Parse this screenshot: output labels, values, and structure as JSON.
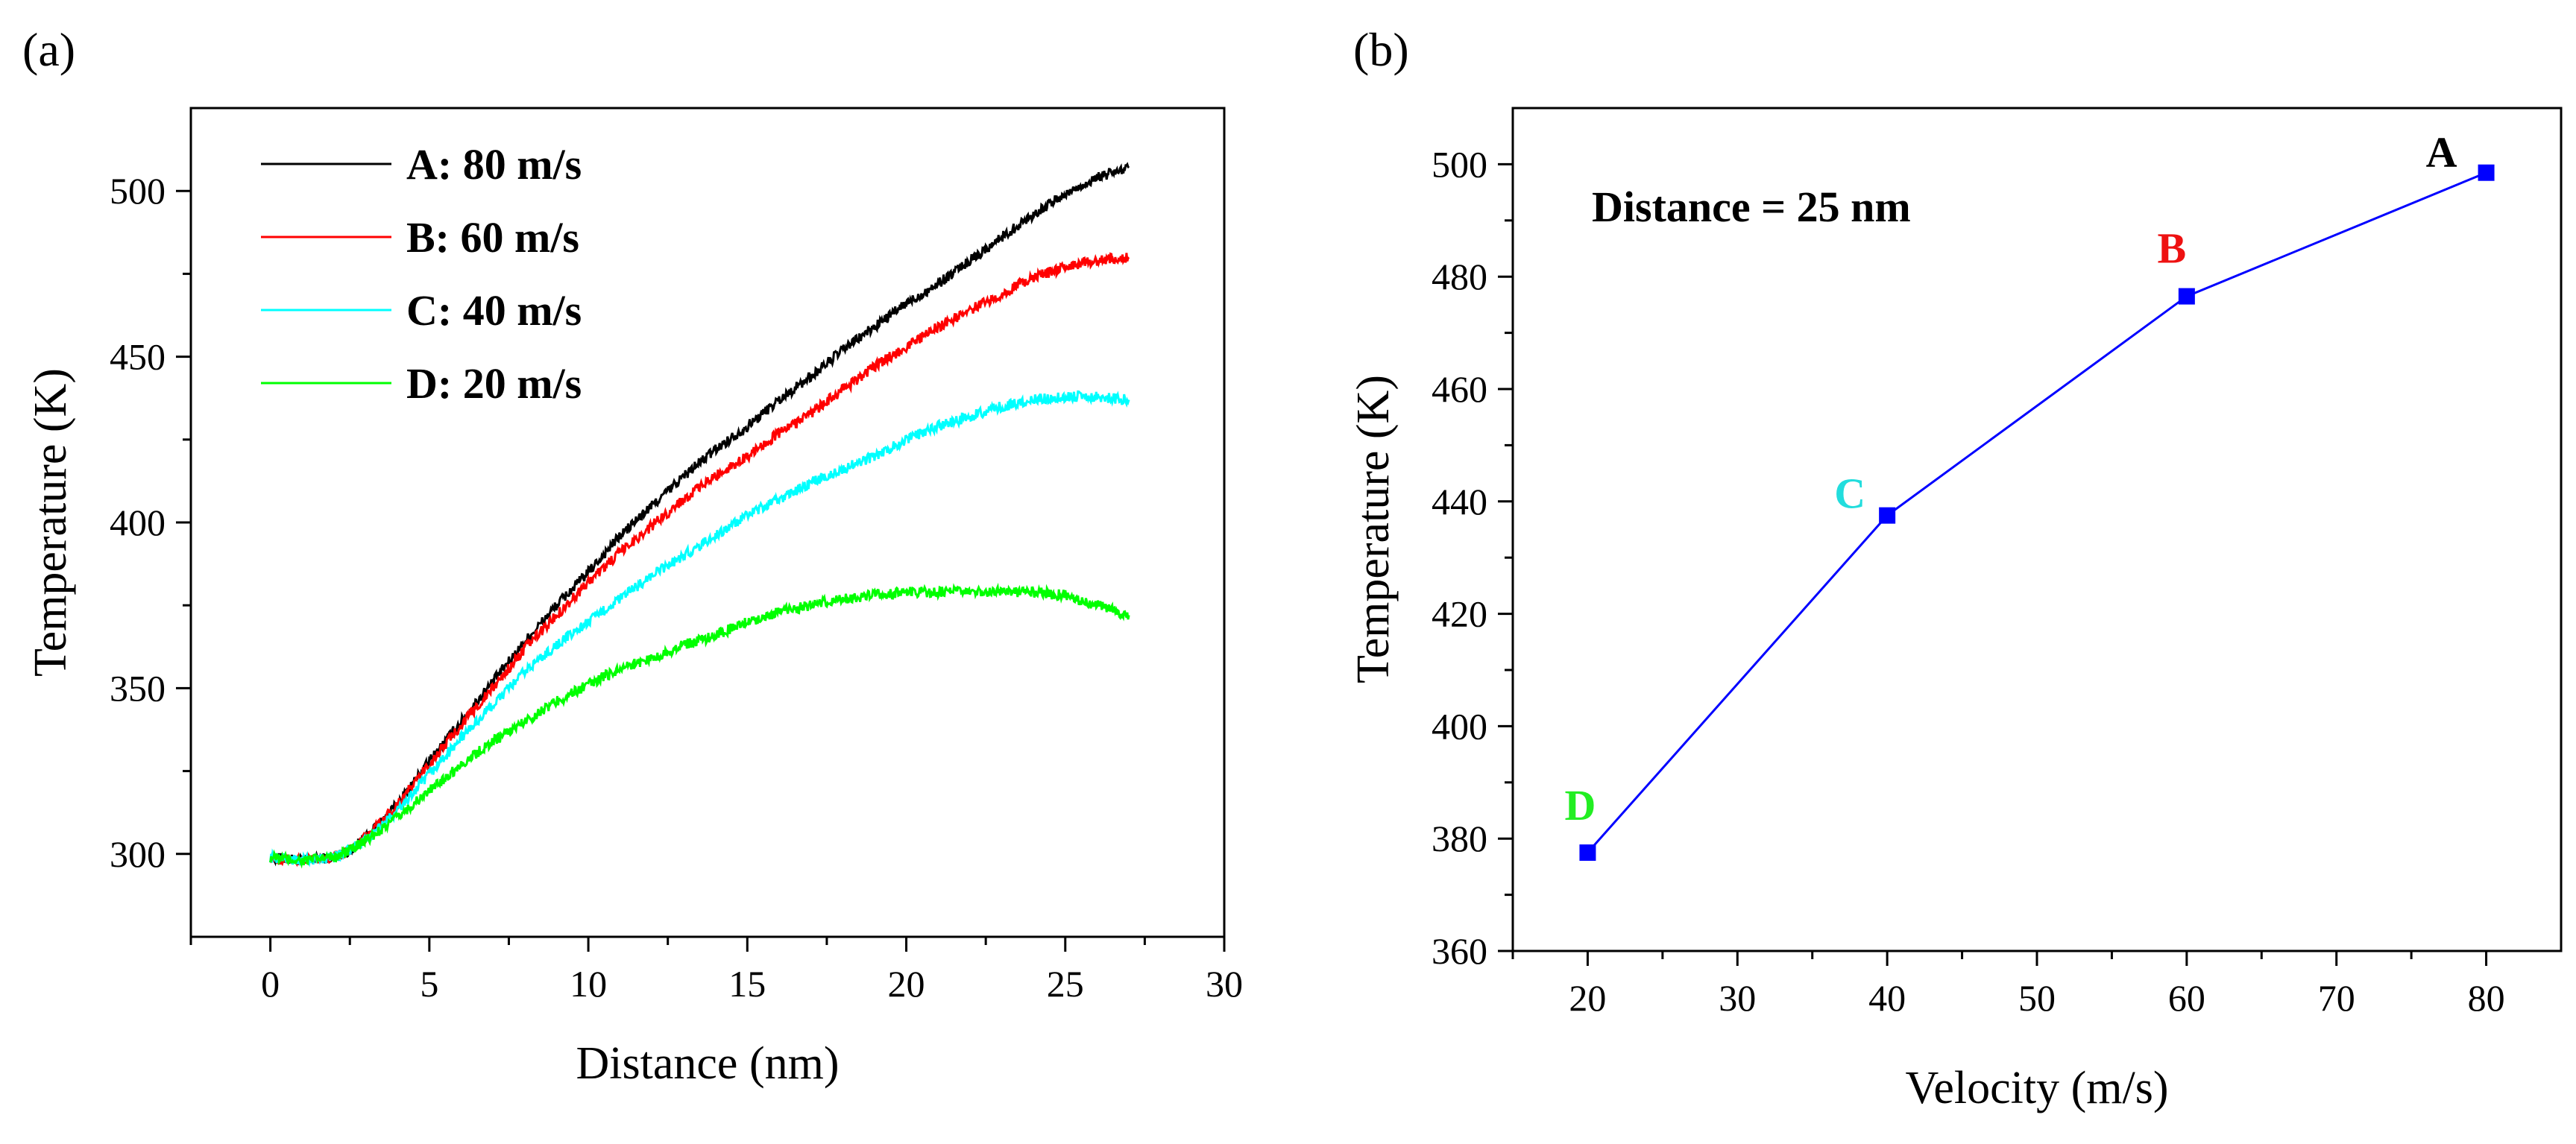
{
  "chart_data": [
    {
      "panel_label": "(a)",
      "type": "line",
      "xlabel": "Distance (nm)",
      "ylabel": "Temperature (K)",
      "xlim": [
        -2.5,
        30
      ],
      "ylim": [
        275,
        525
      ],
      "xticks": [
        0,
        5,
        10,
        15,
        20,
        25,
        30
      ],
      "yticks": [
        300,
        350,
        400,
        450,
        500
      ],
      "grid": false,
      "legend_position": "top-left",
      "series": [
        {
          "name": "A: 80 m/s",
          "color": "#000000",
          "x": [
            0,
            1,
            2,
            2.5,
            3,
            4,
            5,
            6,
            7,
            8,
            9,
            10,
            11,
            12,
            13,
            14,
            15,
            16,
            17,
            18,
            19,
            20,
            21,
            22,
            23,
            24,
            25,
            26,
            27
          ],
          "y": [
            299,
            298,
            299,
            301,
            305,
            315,
            328,
            340,
            352,
            364,
            375,
            385,
            396,
            405,
            414,
            422,
            429,
            437,
            444,
            452,
            459,
            466,
            472,
            479,
            486,
            493,
            499,
            504,
            507
          ]
        },
        {
          "name": "B: 60 m/s",
          "color": "#ff0000",
          "x": [
            0,
            1,
            2,
            2.5,
            3,
            4,
            5,
            6,
            7,
            8,
            9,
            10,
            11,
            12,
            13,
            14,
            15,
            16,
            17,
            18,
            19,
            20,
            21,
            22,
            23,
            24,
            25,
            26,
            27
          ],
          "y": [
            299,
            298,
            299,
            301,
            305,
            315,
            327,
            339,
            350,
            362,
            372,
            382,
            391,
            399,
            407,
            414,
            420,
            427,
            433,
            440,
            447,
            453,
            459,
            464,
            469,
            474,
            477,
            479,
            480
          ]
        },
        {
          "name": "C: 40 m/s",
          "color": "#00ffff",
          "x": [
            0,
            1,
            2,
            2.5,
            3,
            4,
            5,
            6,
            7,
            8,
            9,
            10,
            11,
            12,
            13,
            14,
            15,
            16,
            17,
            18,
            19,
            20,
            21,
            22,
            23,
            24,
            25,
            26,
            27
          ],
          "y": [
            299,
            298,
            299,
            301,
            304,
            313,
            324,
            335,
            345,
            355,
            363,
            370,
            377,
            384,
            390,
            396,
            402,
            407,
            412,
            416,
            420,
            425,
            429,
            432,
            435,
            437,
            438,
            438,
            437
          ]
        },
        {
          "name": "D: 20 m/s",
          "color": "#00ff00",
          "x": [
            0,
            1,
            2,
            2.5,
            3,
            4,
            5,
            6,
            7,
            8,
            9,
            10,
            11,
            12,
            13,
            14,
            15,
            16,
            17,
            18,
            19,
            20,
            21,
            22,
            23,
            24,
            25,
            26,
            27
          ],
          "y": [
            299,
            298,
            299,
            301,
            304,
            311,
            319,
            327,
            334,
            340,
            346,
            351,
            356,
            359,
            363,
            366,
            370,
            373,
            375,
            377,
            378,
            379,
            379,
            379,
            379,
            379,
            378,
            375,
            372
          ]
        }
      ]
    },
    {
      "panel_label": "(b)",
      "type": "line",
      "xlabel": "Velocity (m/s)",
      "ylabel": "Temperature (K)",
      "xlim": [
        15,
        85
      ],
      "ylim": [
        360,
        510
      ],
      "xticks": [
        20,
        30,
        40,
        50,
        60,
        70,
        80
      ],
      "yticks": [
        360,
        380,
        400,
        420,
        440,
        460,
        480,
        500
      ],
      "grid": false,
      "annotation": "Distance = 25 nm",
      "series": [
        {
          "color": "#0000ff",
          "x": [
            20,
            40,
            60,
            80
          ],
          "y": [
            377.5,
            437.5,
            476.5,
            498.5
          ],
          "point_labels": [
            "D",
            "C",
            "B",
            "A"
          ],
          "point_label_colors": [
            "#22ee22",
            "#22dddd",
            "#ee1111",
            "#000000"
          ]
        }
      ]
    }
  ]
}
